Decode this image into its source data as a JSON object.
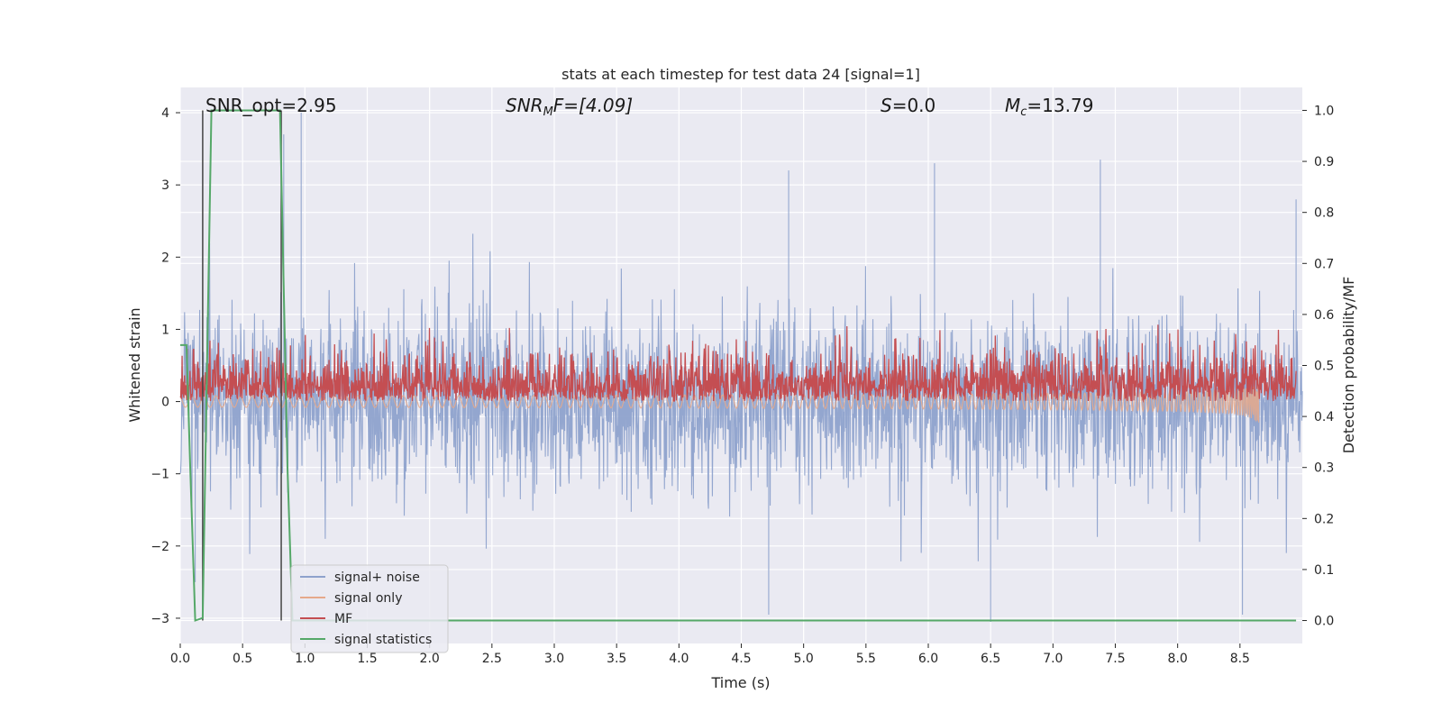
{
  "chart_data": {
    "type": "line",
    "title": "stats at each timestep for test data 24 [signal=1]",
    "xlabel": "Time (s)",
    "ylabel": "Whitened strain",
    "y2label": "Detection probability/MF",
    "xlim": [
      0.0,
      9.0
    ],
    "ylim": [
      -3.35,
      4.35
    ],
    "y2lim": [
      -0.045,
      1.045
    ],
    "xticks": [
      0.0,
      0.5,
      1.0,
      1.5,
      2.0,
      2.5,
      3.0,
      3.5,
      4.0,
      4.5,
      5.0,
      5.5,
      6.0,
      6.5,
      7.0,
      7.5,
      8.0,
      8.5
    ],
    "xtick_labels": [
      "0.0",
      "0.5",
      "1.0",
      "1.5",
      "2.0",
      "2.5",
      "3.0",
      "3.5",
      "4.0",
      "4.5",
      "5.0",
      "5.5",
      "6.0",
      "6.5",
      "7.0",
      "7.5",
      "8.0",
      "8.5"
    ],
    "yticks": [
      -3,
      -2,
      -1,
      0,
      1,
      2,
      3,
      4
    ],
    "ytick_labels": [
      "−3",
      "−2",
      "−1",
      "0",
      "1",
      "2",
      "3",
      "4"
    ],
    "y2ticks": [
      0.0,
      0.1,
      0.2,
      0.3,
      0.4,
      0.5,
      0.6,
      0.7,
      0.8,
      0.9,
      1.0
    ],
    "y2tick_labels": [
      "0.0",
      "0.1",
      "0.2",
      "0.3",
      "0.4",
      "0.5",
      "0.6",
      "0.7",
      "0.8",
      "0.9",
      "1.0"
    ],
    "grid": true,
    "legend_position": "lower-left",
    "annotations": {
      "snr_opt": "SNR_opt=2.95",
      "snr_mf_sym": "SNR",
      "snr_mf_sub": "M",
      "snr_mf_rest": "F=[4.09]",
      "s_sym": "S",
      "s_rest": "=0.0",
      "mc_sym": "M",
      "mc_sub": "c",
      "mc_rest": "=13.79"
    },
    "series": [
      {
        "name": "signal+ noise",
        "color": "#8ea2cc",
        "axis": "left",
        "kind": "noise",
        "duration": 9.0,
        "typical_range": [
          -1.8,
          1.8
        ],
        "extremes": [
          {
            "x": 0.97,
            "y": 4.0
          },
          {
            "x": 0.83,
            "y": 3.7
          },
          {
            "x": 0.12,
            "y": -2.5
          },
          {
            "x": 4.72,
            "y": -2.95
          },
          {
            "x": 4.88,
            "y": 3.2
          },
          {
            "x": 6.05,
            "y": 3.3
          },
          {
            "x": 7.38,
            "y": 3.35
          },
          {
            "x": 8.52,
            "y": -2.95
          },
          {
            "x": 6.5,
            "y": -3.05
          },
          {
            "x": 8.95,
            "y": 2.8
          }
        ]
      },
      {
        "name": "signal only",
        "color": "#e6a98b",
        "axis": "left",
        "kind": "chirp",
        "end_time": 8.65,
        "peak_amplitude": 0.35
      },
      {
        "name": "MF",
        "color": "#c44e52",
        "axis": "right",
        "kind": "band",
        "base": 0.43,
        "typical_range": [
          0.43,
          0.56
        ],
        "peak": 0.58
      },
      {
        "name": "signal statistics",
        "color": "#55a868",
        "axis": "right",
        "x": [
          0.0,
          0.05,
          0.08,
          0.12,
          0.18,
          0.25,
          0.8,
          0.86,
          0.9,
          8.95
        ],
        "y": [
          0.54,
          0.54,
          0.3,
          0.0,
          0.005,
          1.0,
          1.0,
          0.3,
          0.0,
          0.0
        ]
      }
    ],
    "vlines": [
      0.18,
      0.81
    ]
  }
}
